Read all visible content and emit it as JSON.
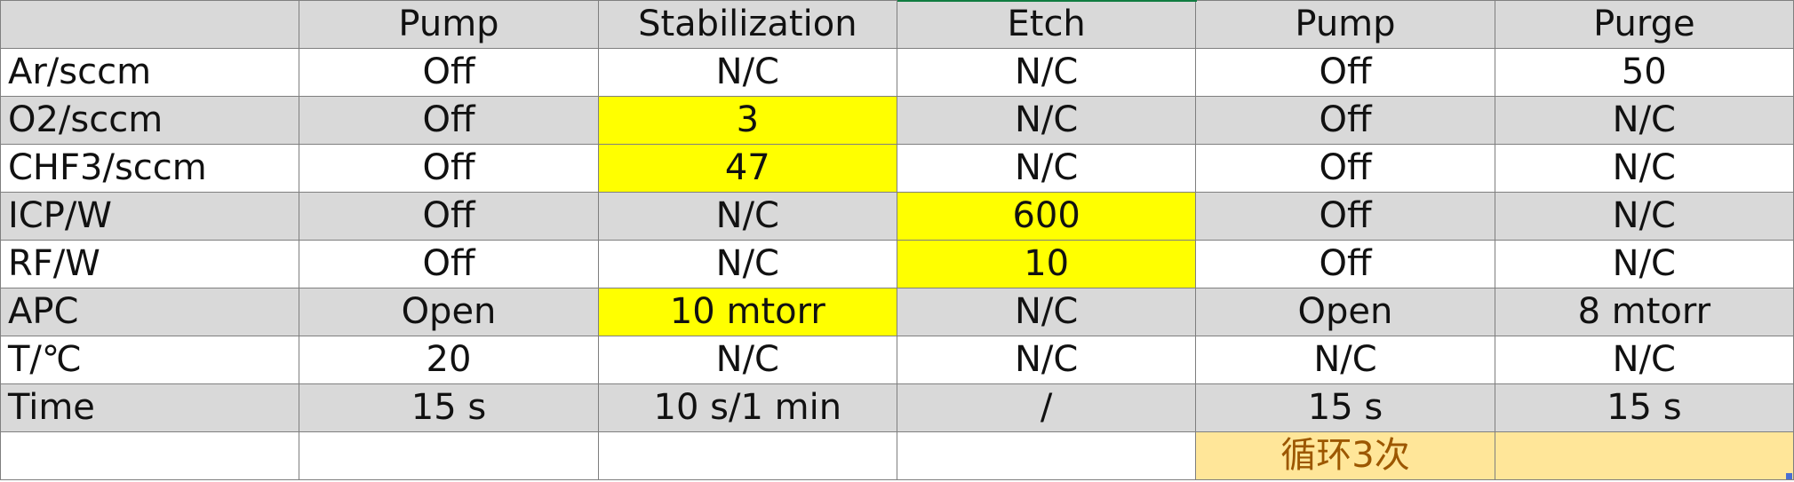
{
  "header": [
    "",
    "Pump",
    "Stabilization",
    "Etch",
    "Pump",
    "Purge"
  ],
  "rows": [
    {
      "label": "Ar/sccm",
      "cells": [
        "Off",
        "N/C",
        "N/C",
        "Off",
        "50"
      ]
    },
    {
      "label": "O2/sccm",
      "cells": [
        "Off",
        "3",
        "N/C",
        "Off",
        "N/C"
      ]
    },
    {
      "label": "CHF3/sccm",
      "cells": [
        "Off",
        "47",
        "N/C",
        "Off",
        "N/C"
      ]
    },
    {
      "label": "ICP/W",
      "cells": [
        "Off",
        "N/C",
        "600",
        "Off",
        "N/C"
      ]
    },
    {
      "label": "RF/W",
      "cells": [
        "Off",
        "N/C",
        "10",
        "Off",
        "N/C"
      ]
    },
    {
      "label": "APC",
      "cells": [
        "Open",
        "10 mtorr",
        "N/C",
        "Open",
        "8 mtorr"
      ]
    },
    {
      "label": "T/℃",
      "cells": [
        "20",
        "N/C",
        "N/C",
        "N/C",
        "N/C"
      ]
    },
    {
      "label": "Time",
      "cells": [
        "15 s",
        "10 s/1 min",
        "/",
        "15 s",
        "15 s"
      ]
    },
    {
      "label": "",
      "cells": [
        "",
        "",
        "",
        "循环3次",
        ""
      ]
    }
  ],
  "colors": {
    "highlight_yellow": "#ffff00",
    "loop_fill": "#ffe699",
    "loop_text": "#9c5700",
    "shaded_row": "#d9d9d9",
    "selection_green": "#107c41"
  }
}
